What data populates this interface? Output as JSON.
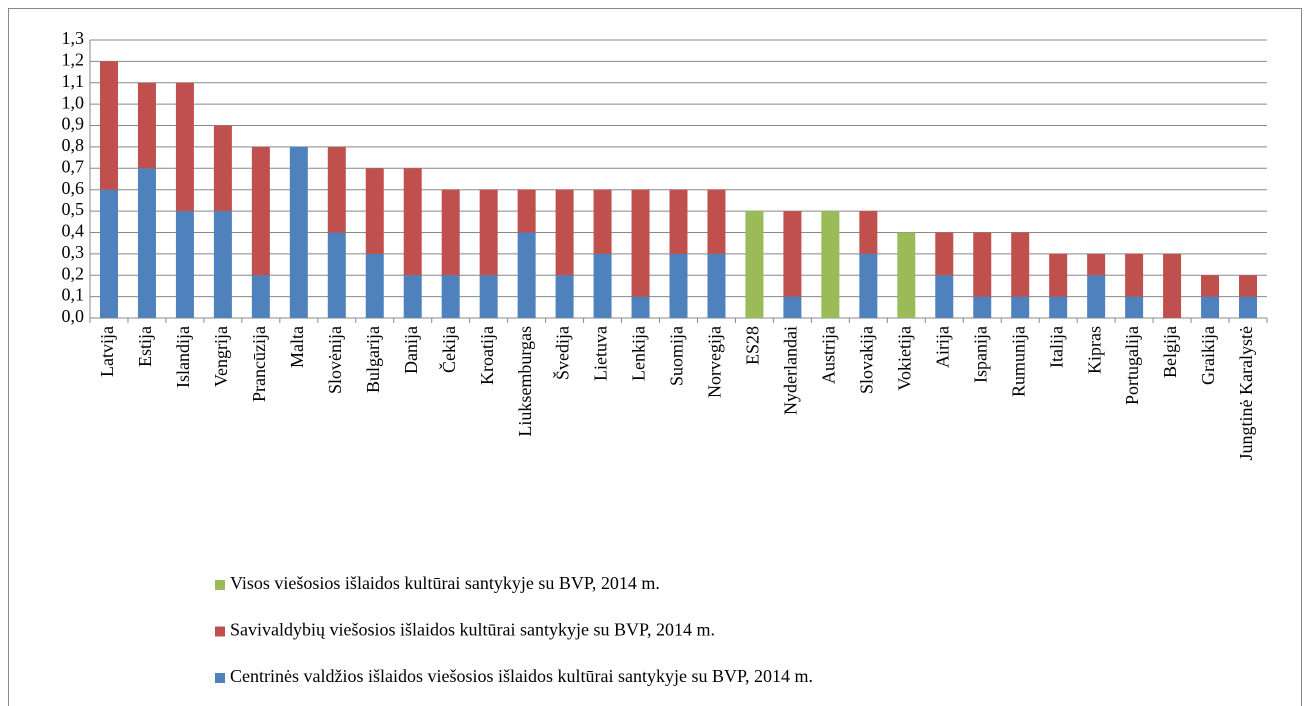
{
  "chart_data": {
    "type": "stacked_bar",
    "categories": [
      "Latvija",
      "Estija",
      "Islandija",
      "Vengrija",
      "Prancūzija",
      "Malta",
      "Slovėnija",
      "Bulgarija",
      "Danija",
      "Čekija",
      "Kroatija",
      "Liuksemburgas",
      "Švedija",
      "Lietuva",
      "Lenkija",
      "Suomija",
      "Norvegija",
      "ES28",
      "Nyderlandai",
      "Austrija",
      "Slovakija",
      "Vokietija",
      "Airija",
      "Ispanija",
      "Rumunija",
      "Italija",
      "Kipras",
      "Portugalija",
      "Belgija",
      "Graikija",
      "Jungtinė Karalystė"
    ],
    "series": [
      {
        "name": "Centrinės valdžios išlaidos viešosios išlaidos kultūrai santykyje su BVP, 2014 m.",
        "color": "#4f81bd",
        "values": [
          0.6,
          0.7,
          0.5,
          0.5,
          0.2,
          0.8,
          0.4,
          0.3,
          0.2,
          0.2,
          0.2,
          0.4,
          0.2,
          0.3,
          0.1,
          0.3,
          0.3,
          null,
          0.1,
          null,
          0.3,
          null,
          0.2,
          0.1,
          0.1,
          0.1,
          0.2,
          0.1,
          0,
          0.1,
          0.1
        ]
      },
      {
        "name": "Savivaldybių viešosios išlaidos kultūrai santykyje su BVP, 2014 m.",
        "color": "#c0504d",
        "values": [
          0.6,
          0.4,
          0.6,
          0.4,
          0.6,
          0,
          0.4,
          0.4,
          0.5,
          0.4,
          0.4,
          0.2,
          0.4,
          0.3,
          0.5,
          0.3,
          0.3,
          null,
          0.4,
          null,
          0.2,
          null,
          0.2,
          0.3,
          0.3,
          0.2,
          0.1,
          0.2,
          0.3,
          0.1,
          0.1
        ]
      },
      {
        "name": "Visos viešosios išlaidos kultūrai santykyje su BVP, 2014 m.",
        "color": "#9bbb59",
        "values": [
          null,
          null,
          null,
          null,
          null,
          null,
          null,
          null,
          null,
          null,
          null,
          null,
          null,
          null,
          null,
          null,
          null,
          0.5,
          null,
          0.5,
          null,
          0.4,
          null,
          null,
          null,
          null,
          null,
          null,
          null,
          null,
          null
        ]
      }
    ],
    "ylim": [
      0,
      1.3
    ],
    "yticks": [
      {
        "value": 0,
        "label": "0,0"
      },
      {
        "value": 0.1,
        "label": "0,1"
      },
      {
        "value": 0.2,
        "label": "0,2"
      },
      {
        "value": 0.3,
        "label": "0,3"
      },
      {
        "value": 0.4,
        "label": "0,4"
      },
      {
        "value": 0.5,
        "label": "0,5"
      },
      {
        "value": 0.6,
        "label": "0,6"
      },
      {
        "value": 0.7,
        "label": "0,7"
      },
      {
        "value": 0.8,
        "label": "0,8"
      },
      {
        "value": 0.9,
        "label": "0,9"
      },
      {
        "value": 1.0,
        "label": "1,0"
      },
      {
        "value": 1.1,
        "label": "1,1"
      },
      {
        "value": 1.2,
        "label": "1,2"
      },
      {
        "value": 1.3,
        "label": "1,3"
      }
    ],
    "grid": true
  }
}
